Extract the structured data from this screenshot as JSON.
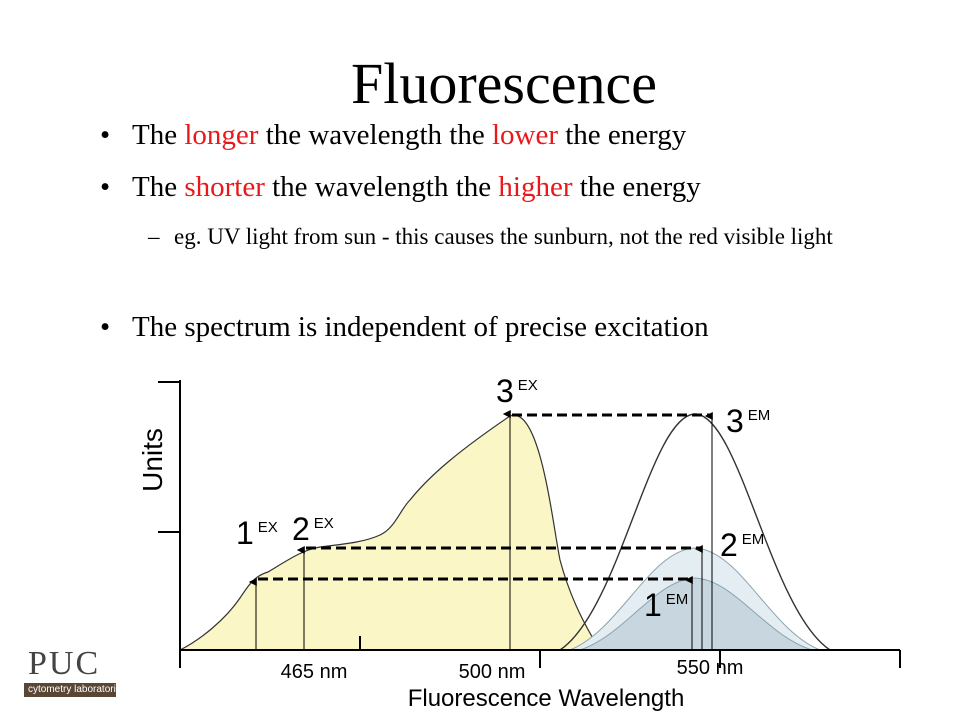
{
  "title": "Fluorescence",
  "bullets": {
    "b1": {
      "p1": "The ",
      "hl1": "longer",
      "p2": " the wavelength the ",
      "hl2": "lower",
      "p3": " the energy"
    },
    "b2": {
      "p1": "The ",
      "hl1": "shorter",
      "p2": " the wavelength the ",
      "hl2": "higher",
      "p3": " the energy"
    },
    "sub": "eg. UV light from sun - this causes the sunburn, not the red visible light",
    "b3": "The spectrum is independent of precise excitation"
  },
  "diagram": {
    "y_axis_label": "Units",
    "x_axis_label": "Fluorescence Wavelength",
    "ticks": [
      "465 nm",
      "500 nm",
      "550 nm"
    ],
    "excitation_labels": {
      "l1": "1",
      "l2": "2",
      "l3": "3",
      "sup": "EX"
    },
    "emission_labels": {
      "l1": "1",
      "l2": "2",
      "l3": "3",
      "sup": "EM"
    }
  },
  "logo": {
    "text": "PUC",
    "band": "cytometry laboratories"
  },
  "colors": {
    "highlight": "#e8191b",
    "excitation_fill": "#fbf6c5",
    "emission_fill": "#d6e3ea"
  }
}
